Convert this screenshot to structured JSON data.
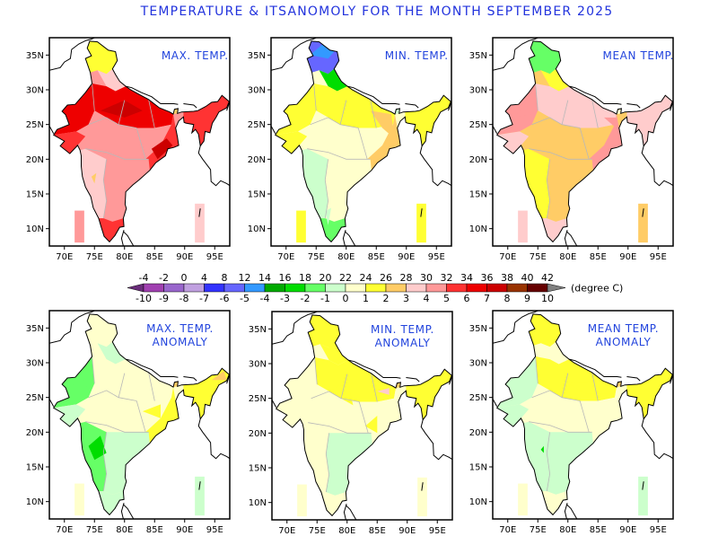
{
  "title": "TEMPERATURE & ITSANOMOLY FOR THE MONTH SEPTEMBER 2025",
  "chart_data": {
    "type": "heatmap",
    "title": "TEMPERATURE & ITSANOMOLY FOR THE MONTH SEPTEMBER 2025",
    "x_ticks": [
      "70E",
      "75E",
      "80E",
      "85E",
      "90E",
      "95E"
    ],
    "y_ticks": [
      "10N",
      "15N",
      "20N",
      "25N",
      "30N",
      "35N"
    ],
    "xlim": [
      67.5,
      97.5
    ],
    "ylim": [
      7.5,
      37.5
    ],
    "units": "(degree C)",
    "colorbar": {
      "absolute_labels": [
        "-4",
        "-2",
        "0",
        "4",
        "8",
        "12",
        "14",
        "16",
        "18",
        "20",
        "22",
        "24",
        "26",
        "28",
        "30",
        "32",
        "34",
        "36",
        "38",
        "40",
        "42"
      ],
      "anomaly_labels": [
        "-10",
        "-9",
        "-8",
        "-7",
        "-6",
        "-5",
        "-4",
        "-3",
        "-2",
        "-1",
        "0",
        "1",
        "2",
        "3",
        "4",
        "5",
        "6",
        "7",
        "8",
        "9",
        "10"
      ],
      "colors": [
        "#6a2c7a",
        "#a040b0",
        "#9966cc",
        "#c0a0e0",
        "#3333ff",
        "#6666ff",
        "#3399ff",
        "#00aa00",
        "#00dd00",
        "#66ff66",
        "#ccffcc",
        "#ffffcc",
        "#ffff33",
        "#ffcc66",
        "#ffcccc",
        "#ff9999",
        "#ff3333",
        "#ee0000",
        "#cc0000",
        "#993300",
        "#660000",
        "#808080"
      ]
    },
    "panels": [
      {
        "name": "max-temp",
        "label": "MAX. TEMP.",
        "dominant_range": "30-36",
        "north_range": "26-30",
        "islands": {
          "andaman": "30-32",
          "lakshadweep": "32-34"
        }
      },
      {
        "name": "min-temp",
        "label": "MIN. TEMP.",
        "dominant_range": "22-26",
        "north_range": "4-20",
        "islands": {
          "andaman": "24-26",
          "lakshadweep": "24-26"
        }
      },
      {
        "name": "mean-temp",
        "label": "MEAN TEMP.",
        "dominant_range": "26-30",
        "north_range": "16-22",
        "islands": {
          "andaman": "26-28",
          "lakshadweep": "28-30"
        }
      },
      {
        "name": "max-temp-anomaly",
        "label": "MAX. TEMP.\nANOMALY",
        "dominant_range": "-1 to 1",
        "notable": "Northeast +1 to +3; central Maharashtra -2 to -4",
        "islands": {
          "andaman": "-2 to -1",
          "lakshadweep": "0 to 1"
        }
      },
      {
        "name": "min-temp-anomaly",
        "label": "MIN. TEMP.\nANOMALY",
        "dominant_range": "0 to 1",
        "notable": "North and Northeast +1 to +2",
        "islands": {
          "andaman": "0 to 1",
          "lakshadweep": "0 to 1"
        }
      },
      {
        "name": "mean-temp-anomaly",
        "label": "MEAN TEMP.\nANOMALY",
        "dominant_range": "-1 to 1",
        "notable": "Gangetic plain and Northeast +1 to +2",
        "islands": {
          "andaman": "-1 to 1",
          "lakshadweep": "0 to 1"
        }
      }
    ]
  }
}
